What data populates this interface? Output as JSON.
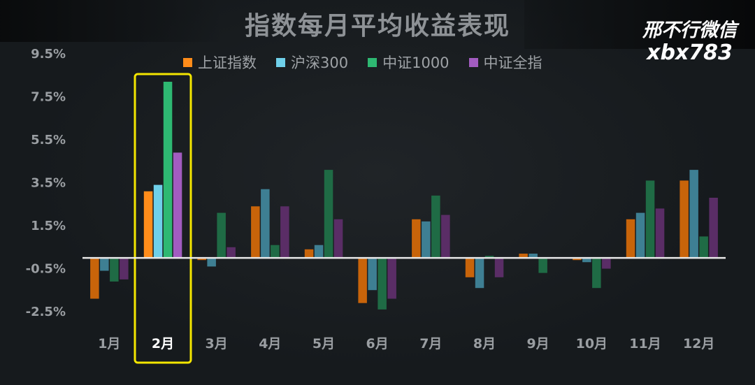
{
  "title": "指数每月平均收益表现",
  "watermark": {
    "line1": "邢不行微信",
    "line2": "xbx783"
  },
  "chart_data": {
    "type": "bar",
    "title": "指数每月平均收益表现",
    "categories": [
      "1月",
      "2月",
      "3月",
      "4月",
      "5月",
      "6月",
      "7月",
      "8月",
      "9月",
      "10月",
      "11月",
      "12月"
    ],
    "highlight_category": "2月",
    "y_tick_labels": [
      "9.5%",
      "7.5%",
      "5.5%",
      "3.5%",
      "1.5%",
      "-0.5%",
      "-2.5%"
    ],
    "y_tick_values": [
      9.5,
      7.5,
      5.5,
      3.5,
      1.5,
      -0.5,
      -2.5
    ],
    "ylim": [
      -2.5,
      9.5
    ],
    "unit": "%",
    "grid": false,
    "legend_position": "top",
    "series": [
      {
        "name": "上证指数",
        "color": "#c8640a",
        "highlight_color": "#ff8c1a",
        "values": [
          -1.9,
          3.1,
          -0.1,
          2.4,
          0.4,
          -2.1,
          1.8,
          -0.9,
          0.2,
          -0.1,
          1.8,
          3.6
        ]
      },
      {
        "name": "沪深300",
        "color": "#3e7f93",
        "highlight_color": "#6fd0ea",
        "values": [
          -0.6,
          3.4,
          -0.4,
          3.2,
          0.6,
          -1.5,
          1.7,
          -1.4,
          0.2,
          -0.2,
          2.1,
          4.1
        ]
      },
      {
        "name": "中证1000",
        "color": "#1f6b45",
        "highlight_color": "#2eb872",
        "values": [
          -1.1,
          8.2,
          2.1,
          0.6,
          4.1,
          -2.4,
          2.9,
          0.1,
          -0.7,
          -1.4,
          3.6,
          1.0
        ]
      },
      {
        "name": "中证全指",
        "color": "#5a2d66",
        "highlight_color": "#a25cc0",
        "values": [
          -1.0,
          4.9,
          0.5,
          2.4,
          1.8,
          -1.9,
          2.0,
          -0.9,
          0.0,
          -0.5,
          2.3,
          2.8
        ]
      }
    ]
  }
}
